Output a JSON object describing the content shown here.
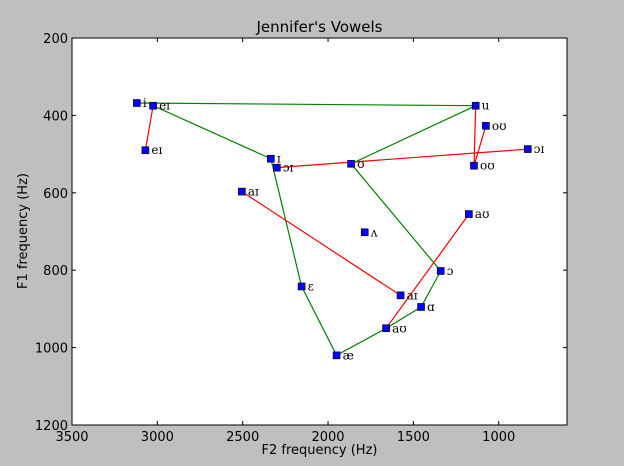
{
  "chart_data": {
    "type": "scatter",
    "title": "Jennifer's Vowels",
    "xlabel": "F2 frequency (Hz)",
    "ylabel": "F1 frequency (Hz)",
    "xlim": [
      3500,
      600
    ],
    "ylim": [
      1200,
      200
    ],
    "x_reversed": true,
    "y_reversed": true,
    "xticks": [
      3500,
      3000,
      2500,
      2000,
      1500,
      1000
    ],
    "yticks": [
      200,
      400,
      600,
      800,
      1000,
      1200
    ],
    "grid": false,
    "marker_color": "#0000ff",
    "points": [
      {
        "label": "i",
        "x": 3120,
        "y": 368
      },
      {
        "label": "eɪ",
        "x": 3025,
        "y": 375
      },
      {
        "label": "eɪ",
        "x": 3070,
        "y": 490
      },
      {
        "label": "u",
        "x": 1135,
        "y": 375
      },
      {
        "label": "oʊ",
        "x": 1075,
        "y": 427
      },
      {
        "label": "ɔɪ",
        "x": 830,
        "y": 487
      },
      {
        "label": "oʊ",
        "x": 1145,
        "y": 530
      },
      {
        "label": "ɪ",
        "x": 2335,
        "y": 512
      },
      {
        "label": "ɔɪ",
        "x": 2300,
        "y": 535
      },
      {
        "label": "ʊ",
        "x": 1865,
        "y": 525
      },
      {
        "label": "aɪ",
        "x": 2505,
        "y": 597
      },
      {
        "label": "aʊ",
        "x": 1175,
        "y": 655
      },
      {
        "label": "ʌ",
        "x": 1785,
        "y": 702
      },
      {
        "label": "ɔ",
        "x": 1340,
        "y": 802
      },
      {
        "label": "ɛ",
        "x": 2155,
        "y": 842
      },
      {
        "label": "aɪ",
        "x": 1575,
        "y": 865
      },
      {
        "label": "ɑ",
        "x": 1455,
        "y": 895
      },
      {
        "label": "aʊ",
        "x": 1660,
        "y": 950
      },
      {
        "label": "æ",
        "x": 1950,
        "y": 1020
      }
    ],
    "lines": [
      {
        "color": "#008000",
        "points": [
          [
            3120,
            368
          ],
          [
            1135,
            375
          ]
        ]
      },
      {
        "color": "#008000",
        "points": [
          [
            3025,
            375
          ],
          [
            2335,
            512
          ],
          [
            2155,
            842
          ],
          [
            1950,
            1020
          ],
          [
            1660,
            950
          ],
          [
            1455,
            895
          ],
          [
            1340,
            802
          ],
          [
            1865,
            525
          ],
          [
            1135,
            375
          ]
        ]
      },
      {
        "color": "#ff0000",
        "points": [
          [
            3025,
            375
          ],
          [
            3070,
            490
          ]
        ]
      },
      {
        "color": "#ff0000",
        "points": [
          [
            1135,
            375
          ],
          [
            1145,
            530
          ],
          [
            1075,
            427
          ]
        ]
      },
      {
        "color": "#ff0000",
        "points": [
          [
            2300,
            535
          ],
          [
            830,
            487
          ]
        ]
      },
      {
        "color": "#ff0000",
        "points": [
          [
            2505,
            597
          ],
          [
            1575,
            865
          ]
        ]
      },
      {
        "color": "#ff0000",
        "points": [
          [
            1175,
            655
          ],
          [
            1660,
            950
          ]
        ]
      }
    ]
  }
}
